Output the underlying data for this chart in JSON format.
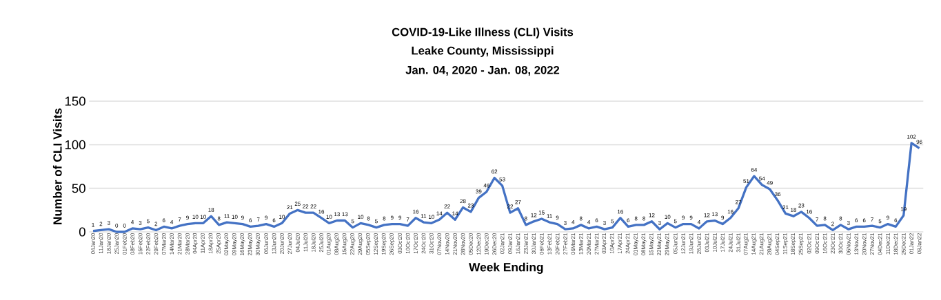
{
  "chart_data": {
    "type": "line",
    "title": "COVID-19-Like Illness (CLI) Visits",
    "subtitle": "Leake County, Mississippi",
    "annotations": [
      "Jan. 04, 2020 - Jan. 08, 2022"
    ],
    "xlabel": "Week Ending",
    "ylabel": "Number of CLI Visits",
    "categories": [
      "04Jan20",
      "11Jan20",
      "18Jan20",
      "25Jan20",
      "01Feb20",
      "08Feb20",
      "15Feb20",
      "22Feb20",
      "29Feb20",
      "07Mar20",
      "14Mar20",
      "21Mar20",
      "28Mar20",
      "04Apr20",
      "11Apr20",
      "18Apr20",
      "25Apr20",
      "02May20",
      "09May20",
      "16May20",
      "23May20",
      "30May20",
      "06Jun20",
      "13Jun20",
      "20Jun20",
      "27Jun20",
      "04Jul20",
      "11Jul20",
      "18Jul20",
      "25Jul20",
      "01Aug20",
      "08Aug20",
      "15Aug20",
      "22Aug20",
      "29Aug20",
      "05Sep20",
      "12Sep20",
      "19Sep20",
      "26Sep20",
      "03Oct20",
      "10Oct20",
      "17Oct20",
      "24Oct20",
      "31Oct20",
      "07Nov20",
      "14Nov20",
      "21Nov20",
      "28Nov20",
      "05Dec20",
      "12Dec20",
      "19Dec20",
      "26Dec20",
      "02Jan21",
      "09Jan21",
      "16Jan21",
      "23Jan21",
      "30Jan21",
      "06Feb21",
      "13Feb21",
      "20Feb21",
      "27Feb21",
      "06Mar21",
      "13Mar21",
      "20Mar21",
      "27Mar21",
      "03Apr21",
      "10Apr21",
      "17Apr21",
      "24Apr21",
      "01May21",
      "08May21",
      "15May21",
      "22May21",
      "29May21",
      "05Jun21",
      "12Jun21",
      "19Jun21",
      "26Jun21",
      "03Jul21",
      "10Jul21",
      "17Jul21",
      "24Jul21",
      "31Jul21",
      "07Aug21",
      "14Aug21",
      "21Aug21",
      "28Aug21",
      "04Sep21",
      "11Sep21",
      "18Sep21",
      "25Sep21",
      "02Oct21",
      "09Oct21",
      "16Oct21",
      "23Oct21",
      "30Oct21",
      "06Nov21",
      "13Nov21",
      "20Nov21",
      "27Nov21",
      "04Dec21",
      "11Dec21",
      "18Dec21",
      "25Dec21",
      "01Jan22",
      "08Jan22"
    ],
    "values": [
      1,
      2,
      3,
      0,
      0,
      4,
      3,
      5,
      2,
      6,
      4,
      7,
      9,
      10,
      10,
      18,
      8,
      11,
      10,
      9,
      6,
      7,
      9,
      6,
      10,
      21,
      25,
      22,
      22,
      16,
      10,
      13,
      13,
      5,
      10,
      8,
      5,
      8,
      9,
      9,
      7,
      16,
      11,
      10,
      14,
      22,
      14,
      28,
      23,
      39,
      46,
      62,
      53,
      22,
      27,
      8,
      12,
      15,
      11,
      9,
      3,
      4,
      8,
      4,
      6,
      3,
      5,
      16,
      6,
      8,
      8,
      12,
      3,
      10,
      5,
      9,
      9,
      4,
      12,
      13,
      9,
      16,
      27,
      51,
      64,
      54,
      49,
      36,
      21,
      18,
      23,
      16,
      7,
      8,
      2,
      8,
      3,
      6,
      6,
      7,
      5,
      9,
      6,
      19,
      102,
      96
    ],
    "color": "#4472c4",
    "ylim": [
      0,
      150
    ],
    "yticks": [
      0,
      50,
      100,
      150
    ],
    "grid": "y",
    "marker": "none",
    "line_style": "solid",
    "data_labels": true
  }
}
